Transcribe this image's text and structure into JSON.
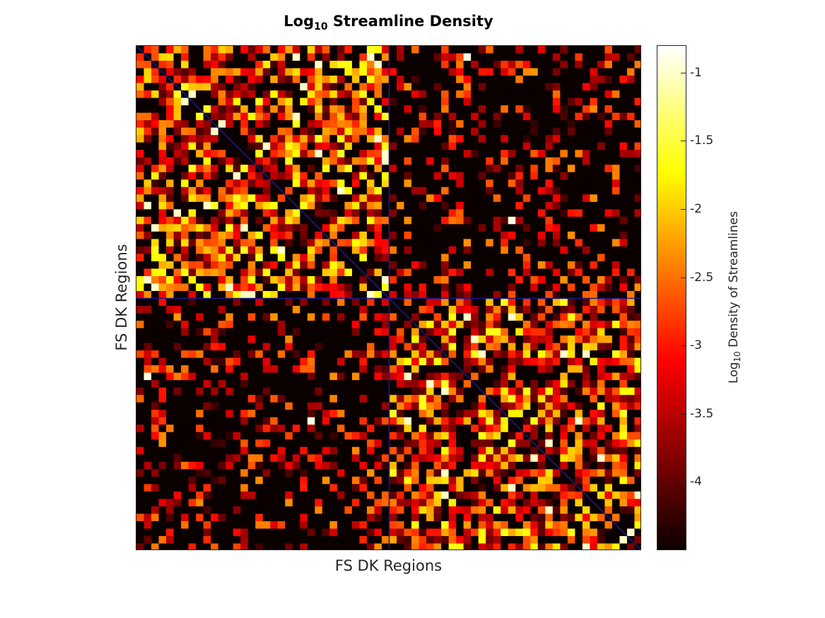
{
  "chart_data": {
    "type": "heatmap",
    "title": "Log",
    "title_subscript": "10",
    "title_suffix": " Streamline Density",
    "xlabel": "FS DK Regions",
    "ylabel": "FS DK Regions",
    "colormap": "hot",
    "grid": false,
    "blocks": 2,
    "block_separator_color": "#1a1a8c",
    "diagonal_line_color": "#1a1a8c",
    "colorbar": {
      "label_prefix": "Log",
      "label_subscript": "10",
      "label_suffix": " Density of Streamlines",
      "range": [
        -4.5,
        -0.8
      ],
      "ticks": [
        -1,
        -1.5,
        -2,
        -2.5,
        -3,
        -3.5,
        -4
      ],
      "tick_labels": [
        "-1",
        "-1.5",
        "-2",
        "-2.5",
        "-3",
        "-3.5",
        "-4"
      ]
    },
    "matrix_size": 68,
    "values_note": "Matrix values not individually labeled; within-hemisphere blocks dense (≈ -2.0 to -3.0), between-hemisphere blocks sparse (≈ -4.5)",
    "within_block_typical": -2.5,
    "between_block_typical": -4.3
  }
}
